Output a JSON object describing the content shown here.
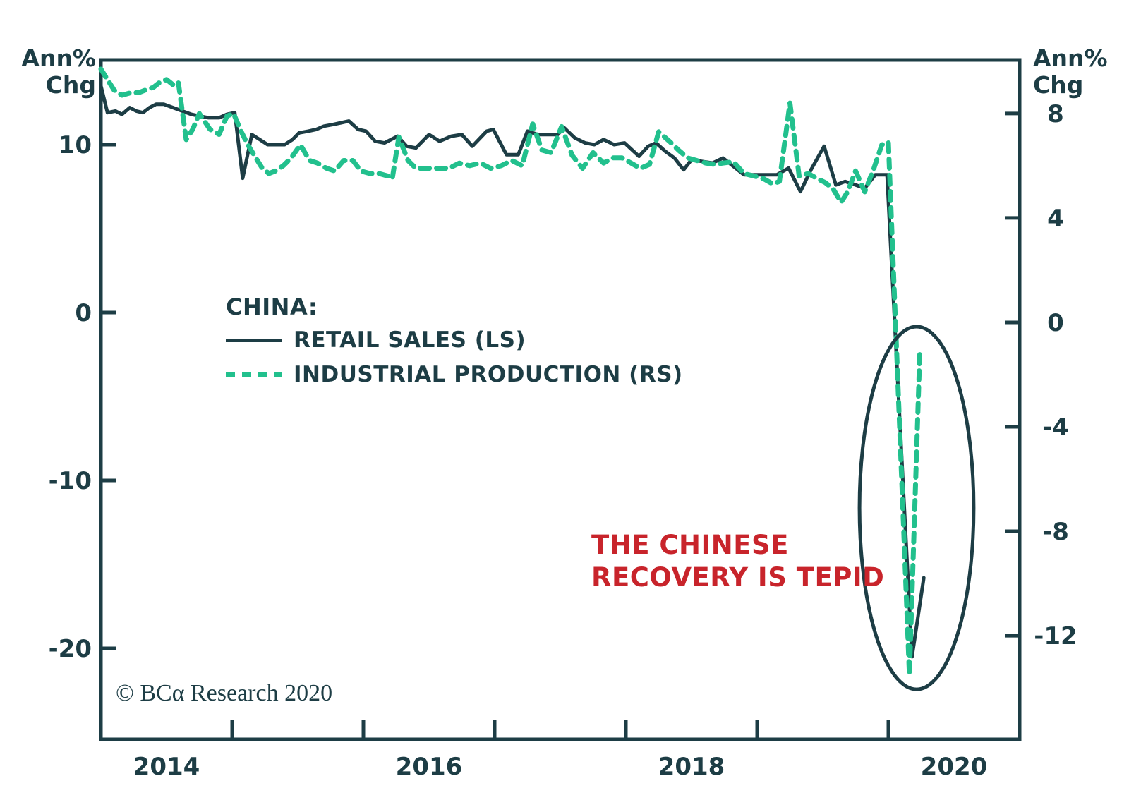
{
  "header": {
    "left_axis_title": "Ann%\nChg",
    "right_axis_title": "Ann%\nChg"
  },
  "legend": {
    "title": "CHINA:",
    "items": [
      {
        "label": "RETAIL SALES (LS)",
        "style": "solid",
        "color": "#1d3d45"
      },
      {
        "label": "INDUSTRIAL PRODUCTION (RS)",
        "style": "dashed",
        "color": "#22c08d"
      }
    ]
  },
  "annotation": {
    "text": "THE CHINESE\nRECOVERY IS TEPID",
    "color": "#c8242b"
  },
  "copyright": "© BCα Research 2020",
  "colors": {
    "line_dark": "#1d3d45",
    "line_green": "#22c08d",
    "annotation_red": "#c8242b",
    "background": "#ffffff"
  },
  "chart_data": {
    "type": "line",
    "title": "",
    "xlabel": "",
    "grid": false,
    "legend_position": "inside-left",
    "x_axis": {
      "range": [
        2014.0,
        2021.0
      ],
      "tick_years": [
        2015,
        2016,
        2017,
        2018,
        2019,
        2020
      ],
      "label_years": [
        "2014",
        "2016",
        "2018",
        "2020"
      ],
      "label_offset_years": 0.5
    },
    "left_axis": {
      "label": "Ann% Chg",
      "ticks": [
        10,
        0,
        -10,
        -20
      ],
      "range": [
        15.04,
        -25.42
      ]
    },
    "right_axis": {
      "label": "Ann% Chg",
      "ticks": [
        8,
        4,
        0,
        -4,
        -8,
        -12
      ],
      "range": [
        10.05,
        -15.97
      ]
    },
    "series": [
      {
        "name": "RETAIL SALES (LS)",
        "axis": "left",
        "style": "solid",
        "color": "#1d3d45",
        "points": [
          [
            2014.0,
            13.5
          ],
          [
            2014.05,
            11.9
          ],
          [
            2014.11,
            12.0
          ],
          [
            2014.16,
            11.8
          ],
          [
            2014.22,
            12.2
          ],
          [
            2014.27,
            12.0
          ],
          [
            2014.32,
            11.9
          ],
          [
            2014.37,
            12.2
          ],
          [
            2014.42,
            12.4
          ],
          [
            2014.48,
            12.4
          ],
          [
            2014.55,
            12.2
          ],
          [
            2014.62,
            12.0
          ],
          [
            2014.69,
            11.8
          ],
          [
            2014.75,
            11.7
          ],
          [
            2014.82,
            11.6
          ],
          [
            2014.9,
            11.6
          ],
          [
            2014.96,
            11.8
          ],
          [
            2015.02,
            11.9
          ],
          [
            2015.08,
            8.0
          ],
          [
            2015.15,
            10.6
          ],
          [
            2015.21,
            10.3
          ],
          [
            2015.27,
            10.0
          ],
          [
            2015.34,
            10.0
          ],
          [
            2015.4,
            10.0
          ],
          [
            2015.46,
            10.3
          ],
          [
            2015.51,
            10.7
          ],
          [
            2015.58,
            10.8
          ],
          [
            2015.64,
            10.9
          ],
          [
            2015.7,
            11.1
          ],
          [
            2015.77,
            11.2
          ],
          [
            2015.83,
            11.3
          ],
          [
            2015.89,
            11.4
          ],
          [
            2015.96,
            10.9
          ],
          [
            2016.02,
            10.8
          ],
          [
            2016.09,
            10.2
          ],
          [
            2016.16,
            10.1
          ],
          [
            2016.26,
            10.5
          ],
          [
            2016.33,
            9.9
          ],
          [
            2016.4,
            9.8
          ],
          [
            2016.5,
            10.6
          ],
          [
            2016.58,
            10.2
          ],
          [
            2016.67,
            10.5
          ],
          [
            2016.75,
            10.6
          ],
          [
            2016.83,
            9.9
          ],
          [
            2016.94,
            10.8
          ],
          [
            2016.99,
            10.9
          ],
          [
            2017.09,
            9.4
          ],
          [
            2017.18,
            9.4
          ],
          [
            2017.25,
            10.8
          ],
          [
            2017.33,
            10.6
          ],
          [
            2017.4,
            10.6
          ],
          [
            2017.48,
            10.6
          ],
          [
            2017.53,
            11.0
          ],
          [
            2017.61,
            10.4
          ],
          [
            2017.69,
            10.1
          ],
          [
            2017.76,
            10.0
          ],
          [
            2017.83,
            10.3
          ],
          [
            2017.91,
            10.0
          ],
          [
            2017.99,
            10.1
          ],
          [
            2018.1,
            9.3
          ],
          [
            2018.17,
            9.9
          ],
          [
            2018.23,
            10.1
          ],
          [
            2018.3,
            9.6
          ],
          [
            2018.37,
            9.2
          ],
          [
            2018.44,
            8.5
          ],
          [
            2018.5,
            9.1
          ],
          [
            2018.58,
            9.0
          ],
          [
            2018.66,
            8.9
          ],
          [
            2018.74,
            9.2
          ],
          [
            2018.82,
            8.7
          ],
          [
            2018.9,
            8.2
          ],
          [
            2018.98,
            8.2
          ],
          [
            2019.06,
            8.2
          ],
          [
            2019.15,
            8.2
          ],
          [
            2019.24,
            8.6
          ],
          [
            2019.33,
            7.2
          ],
          [
            2019.41,
            8.5
          ],
          [
            2019.51,
            9.9
          ],
          [
            2019.6,
            7.6
          ],
          [
            2019.67,
            7.8
          ],
          [
            2019.75,
            7.6
          ],
          [
            2019.82,
            7.4
          ],
          [
            2019.9,
            8.2
          ],
          [
            2019.99,
            8.2
          ],
          [
            2020.18,
            -20.5
          ],
          [
            2020.27,
            -15.8
          ]
        ]
      },
      {
        "name": "INDUSTRIAL PRODUCTION (RS)",
        "axis": "right",
        "style": "dashed",
        "color": "#22c08d",
        "points": [
          [
            2014.0,
            9.7
          ],
          [
            2014.05,
            9.3
          ],
          [
            2014.1,
            8.9
          ],
          [
            2014.16,
            8.7
          ],
          [
            2014.23,
            8.8
          ],
          [
            2014.29,
            8.8
          ],
          [
            2014.34,
            8.9
          ],
          [
            2014.4,
            9.0
          ],
          [
            2014.45,
            9.2
          ],
          [
            2014.5,
            9.3
          ],
          [
            2014.55,
            9.1
          ],
          [
            2014.59,
            9.2
          ],
          [
            2014.65,
            7.0
          ],
          [
            2014.7,
            7.4
          ],
          [
            2014.75,
            8.0
          ],
          [
            2014.83,
            7.4
          ],
          [
            2014.9,
            7.2
          ],
          [
            2014.96,
            7.9
          ],
          [
            2015.01,
            8.0
          ],
          [
            2015.07,
            7.3
          ],
          [
            2015.12,
            6.8
          ],
          [
            2015.18,
            6.3
          ],
          [
            2015.23,
            5.9
          ],
          [
            2015.28,
            5.7
          ],
          [
            2015.33,
            5.8
          ],
          [
            2015.39,
            6.0
          ],
          [
            2015.45,
            6.3
          ],
          [
            2015.52,
            6.8
          ],
          [
            2015.59,
            6.2
          ],
          [
            2015.65,
            6.1
          ],
          [
            2015.72,
            5.9
          ],
          [
            2015.78,
            5.8
          ],
          [
            2015.85,
            6.2
          ],
          [
            2015.92,
            6.2
          ],
          [
            2015.98,
            5.8
          ],
          [
            2016.05,
            5.7
          ],
          [
            2016.12,
            5.7
          ],
          [
            2016.19,
            5.6
          ],
          [
            2016.22,
            5.5
          ],
          [
            2016.27,
            7.1
          ],
          [
            2016.34,
            6.2
          ],
          [
            2016.4,
            5.9
          ],
          [
            2016.48,
            5.9
          ],
          [
            2016.56,
            5.9
          ],
          [
            2016.65,
            5.9
          ],
          [
            2016.73,
            6.1
          ],
          [
            2016.81,
            6.0
          ],
          [
            2016.89,
            6.1
          ],
          [
            2016.97,
            5.9
          ],
          [
            2017.05,
            6.0
          ],
          [
            2017.13,
            6.2
          ],
          [
            2017.21,
            6.0
          ],
          [
            2017.29,
            7.6
          ],
          [
            2017.36,
            6.6
          ],
          [
            2017.43,
            6.5
          ],
          [
            2017.51,
            7.5
          ],
          [
            2017.59,
            6.4
          ],
          [
            2017.67,
            5.9
          ],
          [
            2017.75,
            6.5
          ],
          [
            2017.83,
            6.1
          ],
          [
            2017.9,
            6.3
          ],
          [
            2017.97,
            6.3
          ],
          [
            2018.04,
            6.1
          ],
          [
            2018.11,
            5.9
          ],
          [
            2018.18,
            6.05
          ],
          [
            2018.25,
            7.3
          ],
          [
            2018.34,
            6.9
          ],
          [
            2018.4,
            6.6
          ],
          [
            2018.47,
            6.3
          ],
          [
            2018.54,
            6.2
          ],
          [
            2018.61,
            6.1
          ],
          [
            2018.67,
            6.05
          ],
          [
            2018.74,
            6.1
          ],
          [
            2018.82,
            6.15
          ],
          [
            2018.9,
            5.7
          ],
          [
            2018.98,
            5.6
          ],
          [
            2019.05,
            5.5
          ],
          [
            2019.12,
            5.3
          ],
          [
            2019.17,
            5.4
          ],
          [
            2019.25,
            8.4
          ],
          [
            2019.32,
            5.6
          ],
          [
            2019.39,
            5.7
          ],
          [
            2019.46,
            5.5
          ],
          [
            2019.52,
            5.35
          ],
          [
            2019.58,
            5.1
          ],
          [
            2019.64,
            4.6
          ],
          [
            2019.69,
            5.0
          ],
          [
            2019.75,
            5.8
          ],
          [
            2019.82,
            5.0
          ],
          [
            2019.89,
            5.9
          ],
          [
            2019.95,
            6.8
          ],
          [
            2020.0,
            6.9
          ],
          [
            2020.16,
            -13.5
          ],
          [
            2020.24,
            -1.1
          ]
        ]
      }
    ],
    "highlight_ellipse": {
      "cx_year": 2020.215,
      "cy_left_value": -11.64,
      "rx_years": 0.435,
      "ry_left_units": 10.8,
      "stroke": "#1d3d45"
    }
  }
}
